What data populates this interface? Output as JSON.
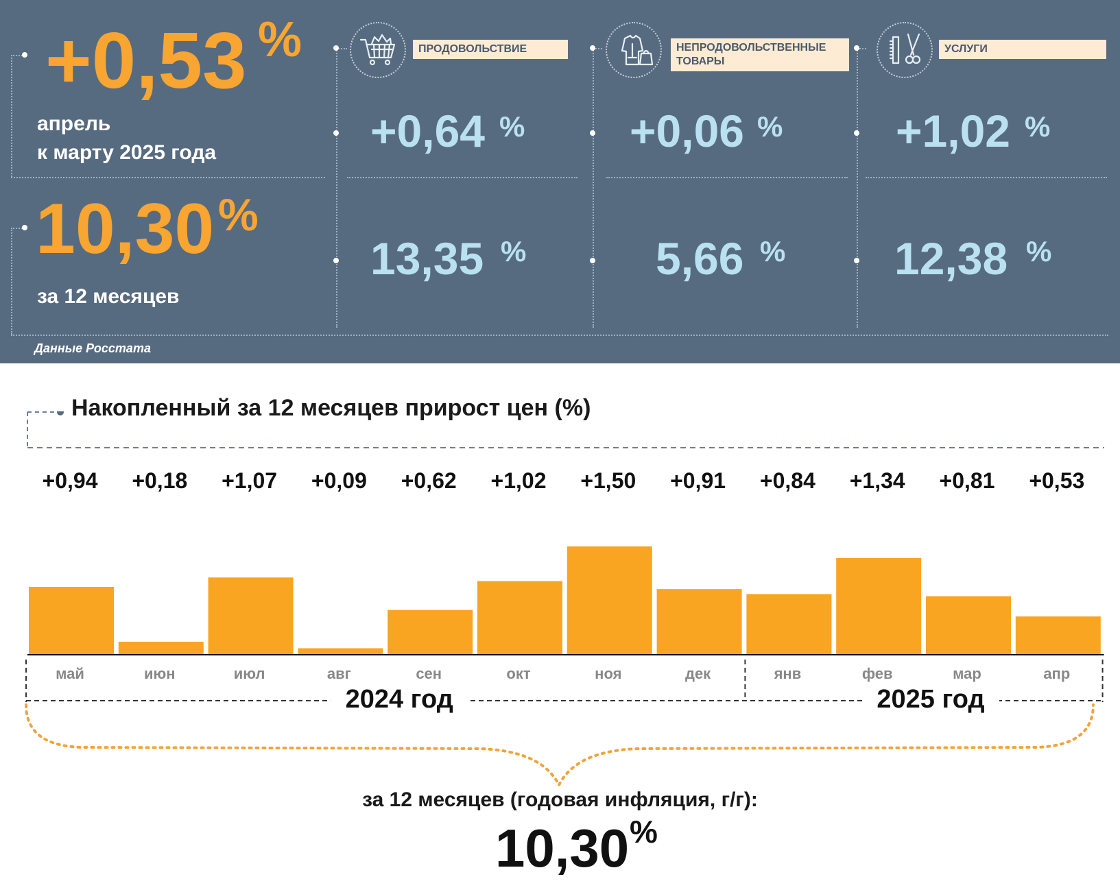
{
  "summary": {
    "monthly": {
      "value": "+0,53",
      "unit": "%",
      "label_line1": "апрель",
      "label_line2": "к марту 2025 года"
    },
    "annual": {
      "value": "10,30",
      "unit": "%",
      "label": "за 12 месяцев"
    },
    "source": "Данные Росстата"
  },
  "categories": [
    {
      "name": "ПРОДОВОЛЬСТВИЕ",
      "icon": "shopping-cart-icon",
      "monthly": "+0,64",
      "annual": "13,35",
      "unit": "%"
    },
    {
      "name_line1": "НЕПРОДОВОЛЬСТВЕННЫЕ",
      "name_line2": "ТОВАРЫ",
      "icon": "clothing-bag-icon",
      "monthly": "+0,06",
      "annual": "5,66",
      "unit": "%"
    },
    {
      "name": "УСЛУГИ",
      "icon": "comb-scissors-icon",
      "monthly": "+1,02",
      "annual": "12,38",
      "unit": "%"
    }
  ],
  "colors": {
    "panel": "#576b80",
    "orange": "#f9a531",
    "light_blue": "#b9e1f1",
    "label_bg": "#fdebd3"
  },
  "chart_data": {
    "type": "bar",
    "title": "Накопленный за 12 месяцев прирост цен (%)",
    "categories": [
      "май",
      "июн",
      "июл",
      "авг",
      "сен",
      "окт",
      "ноя",
      "дек",
      "янв",
      "фев",
      "мар",
      "апр"
    ],
    "values": [
      0.94,
      0.18,
      1.07,
      0.09,
      0.62,
      1.02,
      1.5,
      0.91,
      0.84,
      1.34,
      0.81,
      0.53
    ],
    "value_labels": [
      "+0,94",
      "+0,18",
      "+1,07",
      "+0,09",
      "+0,62",
      "+1,02",
      "+1,50",
      "+0,91",
      "+0,84",
      "+1,34",
      "+0,81",
      "+0,53"
    ],
    "groups": [
      {
        "label": "2024 год",
        "months": 8
      },
      {
        "label": "2025 год",
        "months": 4
      }
    ],
    "ylim": [
      0,
      1.5
    ],
    "bar_color": "#f9a522",
    "grid": false
  },
  "footer": {
    "caption": "за 12 месяцев (годовая инфляция, г/г):",
    "value": "10,30",
    "unit": "%"
  }
}
